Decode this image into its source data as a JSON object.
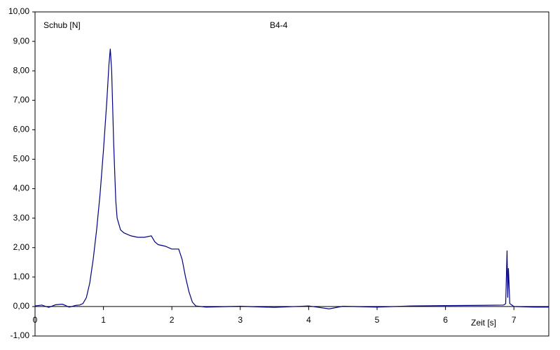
{
  "chart_data": {
    "type": "line",
    "title": "B4-4",
    "y_label": "Schub [N]",
    "x_label": "Zeit [s]",
    "xlim": [
      0,
      7.51
    ],
    "ylim": [
      -1,
      10
    ],
    "xticks": [
      0,
      1,
      2,
      3,
      4,
      5,
      6,
      7
    ],
    "yticks": [
      {
        "value": 10,
        "label": "10,00"
      },
      {
        "value": 9,
        "label": "9,00"
      },
      {
        "value": 8,
        "label": "8,00"
      },
      {
        "value": 7,
        "label": "7,00"
      },
      {
        "value": 6,
        "label": "6,00"
      },
      {
        "value": 5,
        "label": "5,00"
      },
      {
        "value": 4,
        "label": "4,00"
      },
      {
        "value": 3,
        "label": "3,00"
      },
      {
        "value": 2,
        "label": "2,00"
      },
      {
        "value": 1,
        "label": "1,00"
      },
      {
        "value": 0,
        "label": "0,00"
      },
      {
        "value": -1,
        "label": "-1,00"
      }
    ],
    "grid": false,
    "series": [
      {
        "color": "#000080",
        "x": [
          0,
          0.1,
          0.2,
          0.3,
          0.4,
          0.5,
          0.6,
          0.65,
          0.7,
          0.75,
          0.8,
          0.85,
          0.9,
          0.95,
          1.0,
          1.05,
          1.08,
          1.1,
          1.12,
          1.15,
          1.18,
          1.2,
          1.25,
          1.3,
          1.4,
          1.5,
          1.6,
          1.7,
          1.75,
          1.8,
          1.9,
          2.0,
          2.1,
          2.15,
          2.2,
          2.25,
          2.3,
          2.35,
          2.5,
          3.0,
          3.5,
          4.0,
          4.3,
          4.5,
          5.0,
          5.5,
          6.0,
          6.5,
          6.85,
          6.88,
          6.9,
          6.91,
          6.92,
          6.94,
          7.0,
          7.3,
          7.51
        ],
        "values": [
          0.02,
          0.05,
          -0.03,
          0.06,
          0.08,
          -0.02,
          0.04,
          0.05,
          0.1,
          0.3,
          0.8,
          1.6,
          2.6,
          3.8,
          5.3,
          7.0,
          8.2,
          8.75,
          8.0,
          5.5,
          3.6,
          3.0,
          2.6,
          2.5,
          2.4,
          2.35,
          2.35,
          2.4,
          2.2,
          2.1,
          2.05,
          1.95,
          1.95,
          1.6,
          1.0,
          0.5,
          0.15,
          0.02,
          -0.02,
          0.01,
          -0.03,
          0.02,
          -0.08,
          0.01,
          -0.02,
          0.02,
          0.03,
          0.04,
          0.05,
          0.1,
          1.9,
          0.3,
          1.3,
          0.1,
          0.0,
          -0.02,
          -0.02
        ]
      }
    ]
  }
}
